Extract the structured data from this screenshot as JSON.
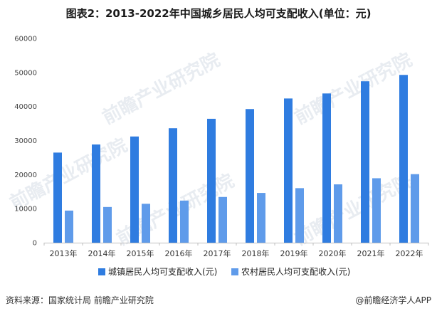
{
  "title": "图表2：2013-2022年中国城乡居民人均可支配收入(单位：元)",
  "watermark": "前瞻产业研究院",
  "source_text": "资料来源：国家统计局 前瞻产业研究院",
  "brand_text": "@前瞻经济学人APP",
  "colors": {
    "urban": "#2f7ce0",
    "rural": "#5f9bea",
    "axis": "#bfbfbf"
  },
  "chart_data": {
    "type": "bar",
    "title": "图表2：2013-2022年中国城乡居民人均可支配收入(单位：元)",
    "categories": [
      "2013年",
      "2014年",
      "2015年",
      "2016年",
      "2017年",
      "2018年",
      "2019年",
      "2020年",
      "2021年",
      "2022年"
    ],
    "series": [
      {
        "name": "城镇居民人均可支配收入(元)",
        "values": [
          26467,
          28844,
          31195,
          33616,
          36396,
          39251,
          42359,
          43834,
          47412,
          49283
        ]
      },
      {
        "name": "农村居民人均可支配收入(元)",
        "values": [
          9430,
          10489,
          11422,
          12363,
          13432,
          14617,
          16021,
          17131,
          18931,
          20133
        ]
      }
    ],
    "ylim": [
      0,
      60000
    ],
    "yticks": [
      "0",
      "10000",
      "20000",
      "30000",
      "40000",
      "50000",
      "60000"
    ],
    "xlabel": "",
    "ylabel": "",
    "grid": false,
    "legend_position": "bottom"
  }
}
